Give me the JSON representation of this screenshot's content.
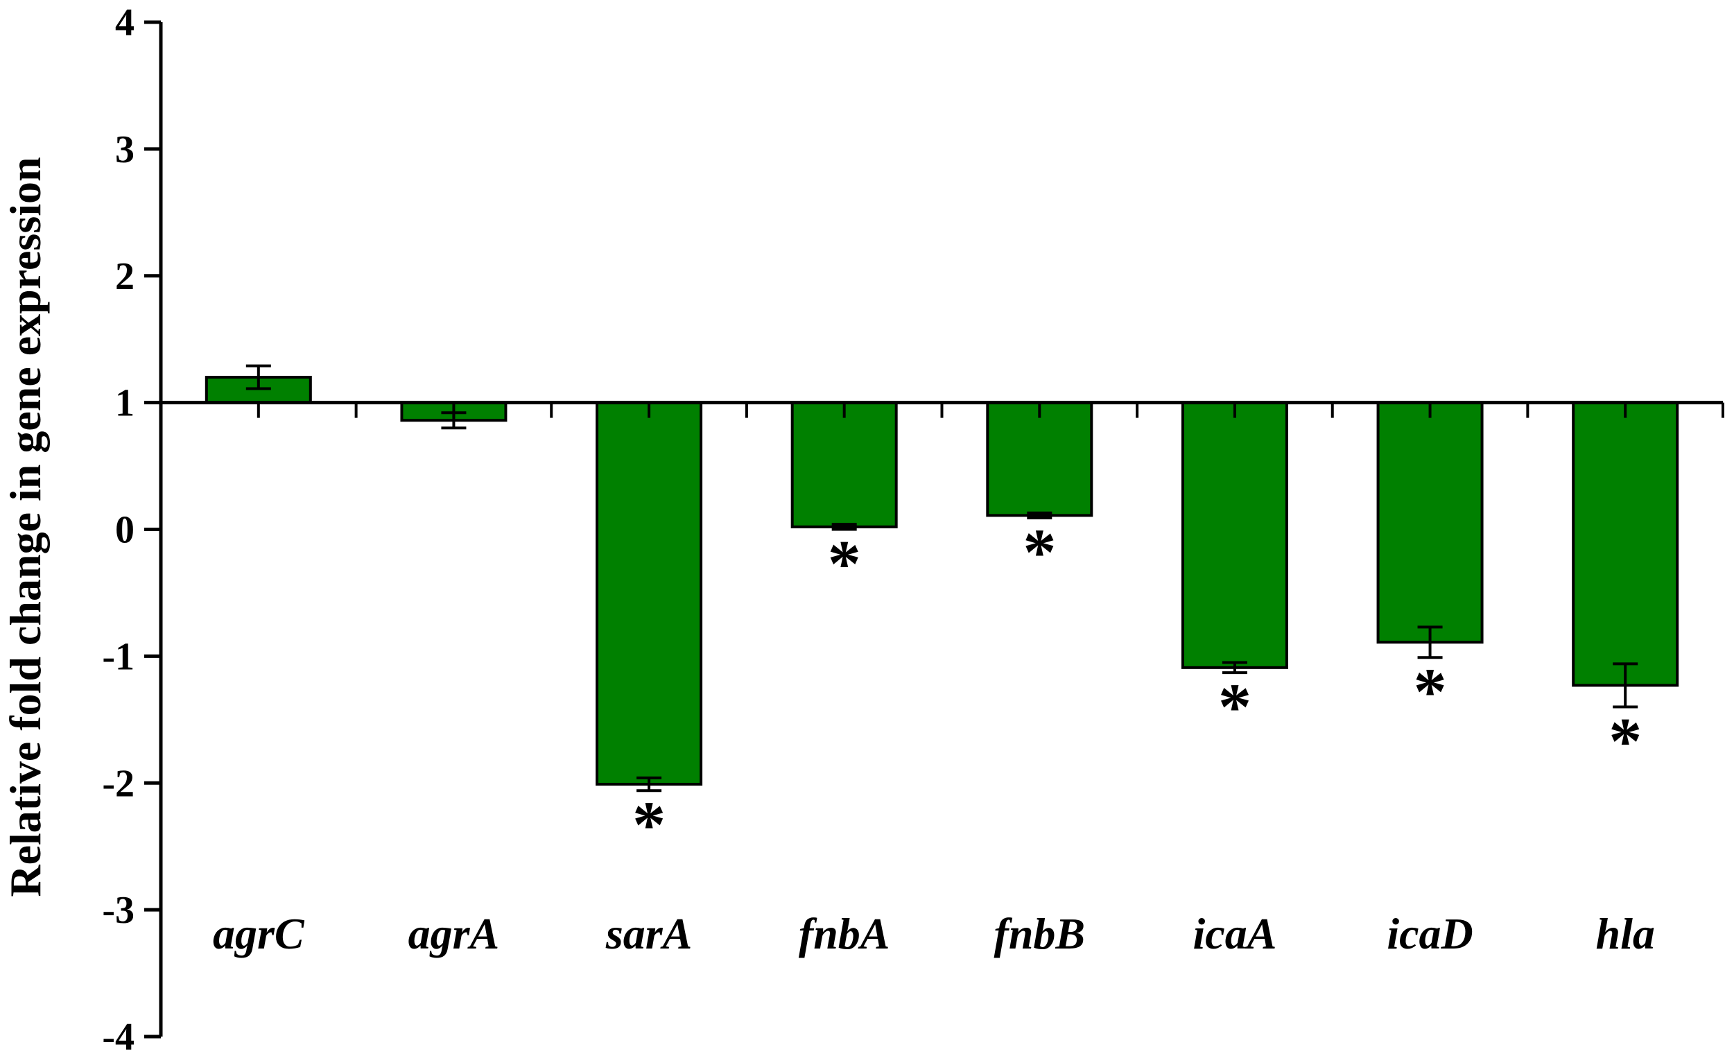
{
  "chart_data": {
    "type": "bar",
    "ylabel": "Relative fold change in gene expression",
    "xlabel": "",
    "ylim": [
      -4,
      4
    ],
    "yticks": [
      "4",
      "3",
      "2",
      "1",
      "0",
      "-1",
      "-2",
      "-3",
      "-4"
    ],
    "baseline": 1,
    "bar_color": "#008000",
    "categories": [
      "agrC",
      "agrA",
      "sarA",
      "fnbA",
      "fnbB",
      "icaA",
      "icaD",
      "hla"
    ],
    "values": [
      1.2,
      0.86,
      -2.01,
      0.02,
      0.11,
      -1.09,
      -0.89,
      -1.23
    ],
    "errors": [
      0.09,
      0.06,
      0.05,
      0.02,
      0.02,
      0.04,
      0.12,
      0.17
    ],
    "significance": [
      "",
      "",
      "*",
      "*",
      "*",
      "*",
      "*",
      "*"
    ]
  }
}
